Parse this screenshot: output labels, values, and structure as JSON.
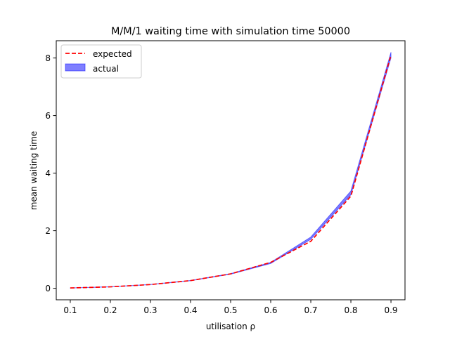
{
  "chart_data": {
    "type": "line",
    "title": "M/M/1 waiting time with simulation time 50000",
    "xlabel": "utilisation ρ",
    "ylabel": "mean waiting time",
    "x": [
      0.1,
      0.2,
      0.3,
      0.4,
      0.5,
      0.6,
      0.7,
      0.8,
      0.9
    ],
    "xlim": [
      0.065,
      0.935
    ],
    "ylim": [
      -0.4,
      8.6
    ],
    "xticks": [
      "0.1",
      "0.2",
      "0.3",
      "0.4",
      "0.5",
      "0.6",
      "0.7",
      "0.8",
      "0.9"
    ],
    "yticks": [
      0,
      2,
      4,
      6,
      8
    ],
    "grid": false,
    "legend_position": "top-left",
    "series": [
      {
        "name": "expected",
        "style": "dashed-line",
        "color": "#ff0000",
        "values": [
          0.011,
          0.05,
          0.129,
          0.267,
          0.5,
          0.9,
          1.633,
          3.2,
          8.1
        ]
      },
      {
        "name": "actual",
        "style": "filled-band",
        "color": "#0000ff",
        "fill_alpha": 0.5,
        "lower": [
          0.01,
          0.048,
          0.126,
          0.262,
          0.49,
          0.86,
          1.7,
          3.25,
          8.0
        ],
        "upper": [
          0.013,
          0.053,
          0.133,
          0.272,
          0.51,
          0.9,
          1.78,
          3.38,
          8.2
        ]
      }
    ]
  }
}
